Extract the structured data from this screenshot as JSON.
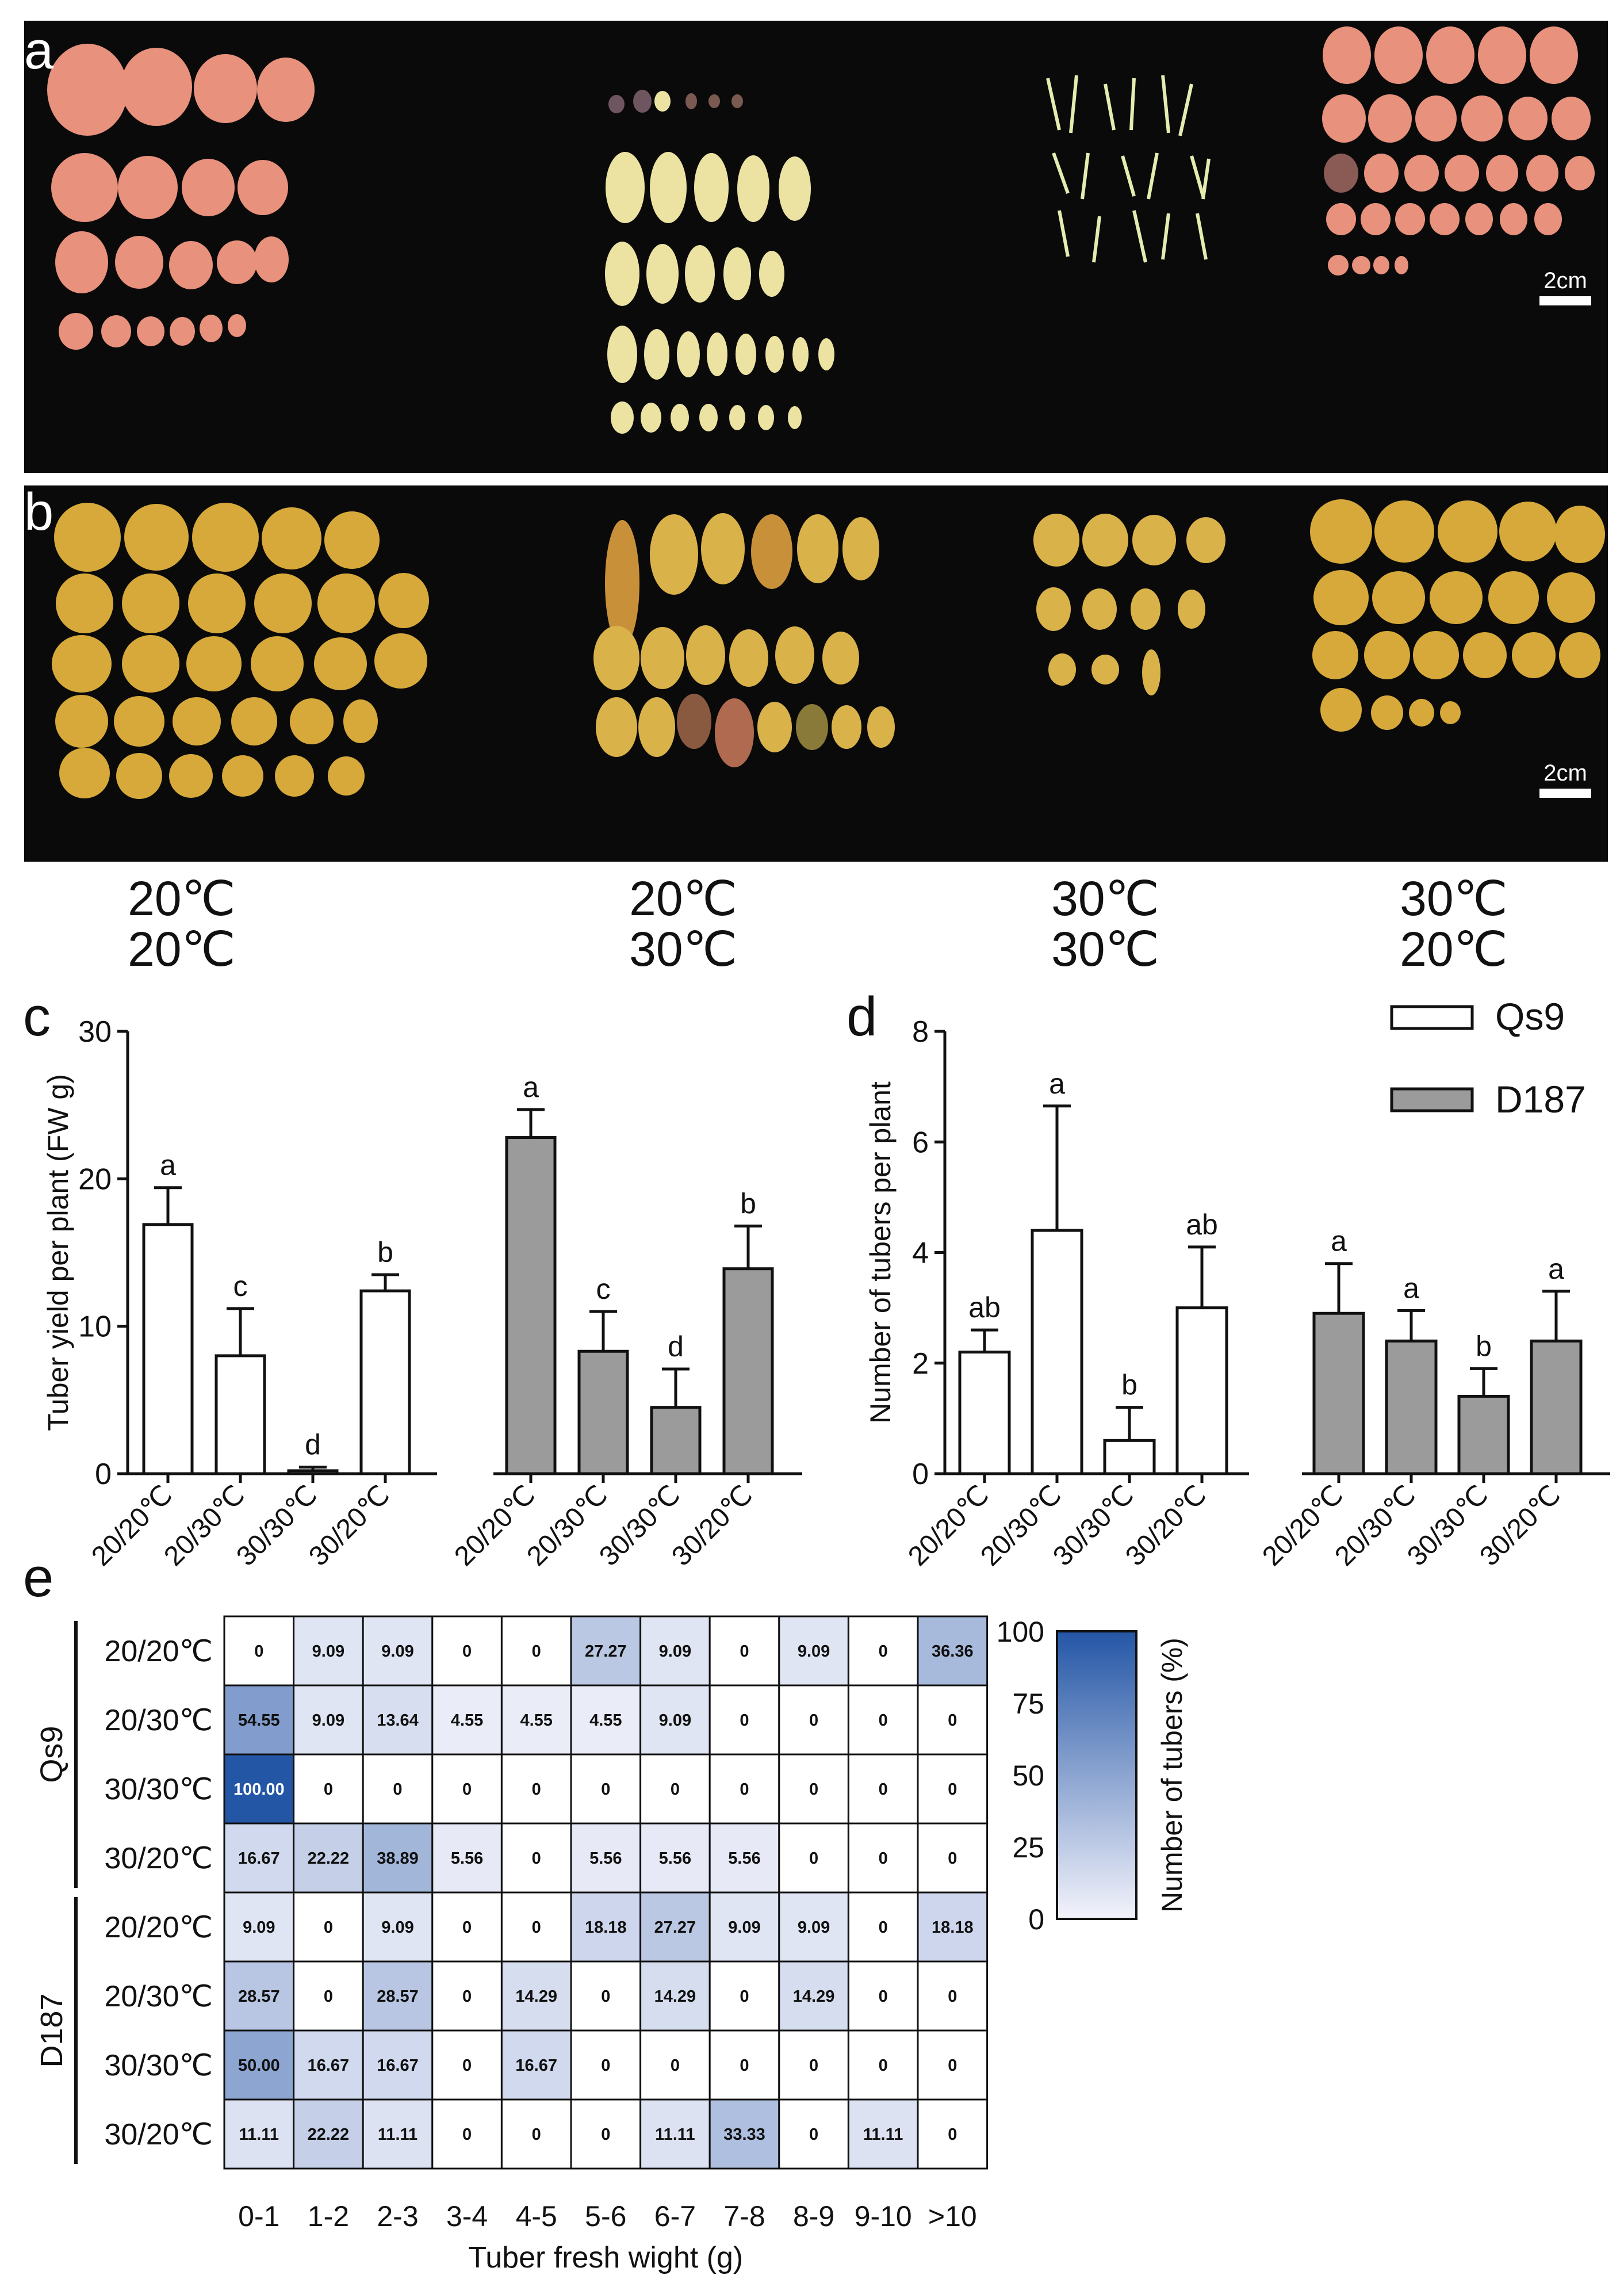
{
  "panels": {
    "a": {
      "letter": "a",
      "scale": "2cm"
    },
    "b": {
      "letter": "b",
      "scale": "2cm"
    }
  },
  "conditions": [
    {
      "line1": "20℃",
      "line2": "20℃"
    },
    {
      "line1": "20℃",
      "line2": "30℃"
    },
    {
      "line1": "30℃",
      "line2": "30℃"
    },
    {
      "line1": "30℃",
      "line2": "20℃"
    }
  ],
  "colors": {
    "open_bar": "#ffffff",
    "gray_bar": "#9b9b9b",
    "heat_low": "#f3f3fb",
    "heat_high": "#2456a6",
    "photo_bg": "#0a0a0a"
  },
  "chart_data": [
    {
      "id": "c",
      "panel": "c",
      "type": "bar",
      "ylabel": "Tuber yield per plant (FW g)",
      "ylim": [
        0,
        30
      ],
      "yticks": [
        0,
        10,
        20,
        30
      ],
      "categories": [
        "20/20℃",
        "20/30℃",
        "30/30℃",
        "30/20℃"
      ],
      "series": [
        {
          "name": "Qs9",
          "values": [
            16.9,
            8.0,
            0.2,
            12.4
          ],
          "errors": [
            2.5,
            3.2,
            0.25,
            1.1
          ],
          "letters": [
            "a",
            "c",
            "d",
            "b"
          ]
        },
        {
          "name": "D187",
          "values": [
            22.8,
            8.3,
            4.5,
            13.9
          ],
          "errors": [
            1.9,
            2.7,
            2.6,
            2.9
          ],
          "letters": [
            "a",
            "c",
            "d",
            "b"
          ]
        }
      ]
    },
    {
      "id": "d",
      "panel": "d",
      "type": "bar",
      "ylabel": "Number of tubers per plant",
      "ylim": [
        0,
        8
      ],
      "yticks": [
        0,
        2,
        4,
        6,
        8
      ],
      "categories": [
        "20/20℃",
        "20/30℃",
        "30/30℃",
        "30/20℃"
      ],
      "series": [
        {
          "name": "Qs9",
          "values": [
            2.2,
            4.4,
            0.6,
            3.0
          ],
          "errors": [
            0.4,
            2.25,
            0.6,
            1.1
          ],
          "letters": [
            "ab",
            "a",
            "b",
            "ab"
          ]
        },
        {
          "name": "D187",
          "values": [
            2.9,
            2.4,
            1.4,
            2.4
          ],
          "errors": [
            0.9,
            0.55,
            0.5,
            0.9
          ],
          "letters": [
            "a",
            "a",
            "b",
            "a"
          ]
        }
      ],
      "legend": [
        "Qs9",
        "D187"
      ]
    },
    {
      "id": "e",
      "panel": "e",
      "type": "heatmap",
      "xlabel": "Tuber fresh wight (g)",
      "colorbar_label": "Number of tubers (%)",
      "colorbar_ticks": [
        0,
        25,
        50,
        75,
        100
      ],
      "columns": [
        "0-1",
        "1-2",
        "2-3",
        "3-4",
        "4-5",
        "5-6",
        "6-7",
        "7-8",
        "8-9",
        "9-10",
        ">10"
      ],
      "groups": [
        {
          "name": "Qs9",
          "rows": [
            {
              "label": "20/20℃",
              "values": [
                "0",
                "9.09",
                "9.09",
                "0",
                "0",
                "27.27",
                "9.09",
                "0",
                "9.09",
                "0",
                "36.36"
              ]
            },
            {
              "label": "20/30℃",
              "values": [
                "54.55",
                "9.09",
                "13.64",
                "4.55",
                "4.55",
                "4.55",
                "9.09",
                "0",
                "0",
                "0",
                "0"
              ]
            },
            {
              "label": "30/30℃",
              "values": [
                "100.00",
                "0",
                "0",
                "0",
                "0",
                "0",
                "0",
                "0",
                "0",
                "0",
                "0"
              ]
            },
            {
              "label": "30/20℃",
              "values": [
                "16.67",
                "22.22",
                "38.89",
                "5.56",
                "0",
                "5.56",
                "5.56",
                "5.56",
                "0",
                "0",
                "0"
              ]
            }
          ]
        },
        {
          "name": "D187",
          "rows": [
            {
              "label": "20/20℃",
              "values": [
                "9.09",
                "0",
                "9.09",
                "0",
                "0",
                "18.18",
                "27.27",
                "9.09",
                "9.09",
                "0",
                "18.18"
              ]
            },
            {
              "label": "20/30℃",
              "values": [
                "28.57",
                "0",
                "28.57",
                "0",
                "14.29",
                "0",
                "14.29",
                "0",
                "14.29",
                "0",
                "0"
              ]
            },
            {
              "label": "30/30℃",
              "values": [
                "50.00",
                "16.67",
                "16.67",
                "0",
                "16.67",
                "0",
                "0",
                "0",
                "0",
                "0",
                "0"
              ]
            },
            {
              "label": "30/20℃",
              "values": [
                "11.11",
                "22.22",
                "11.11",
                "0",
                "0",
                "0",
                "11.11",
                "33.33",
                "0",
                "11.11",
                "0"
              ]
            }
          ]
        }
      ]
    }
  ]
}
